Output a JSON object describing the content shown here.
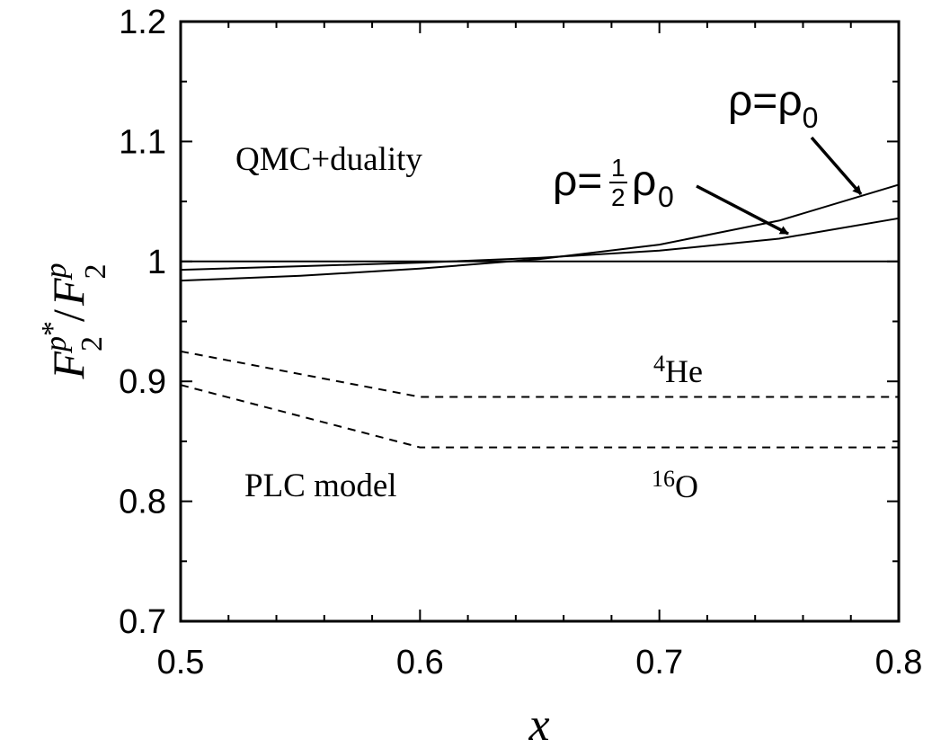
{
  "chart_data": {
    "type": "line",
    "xlabel": "x",
    "ylabel": {
      "base1": "F",
      "sup1": "p",
      "star": "*",
      "sub1": "2",
      "slash": "/",
      "base2": "F",
      "sup2": "p",
      "sub2": "2"
    },
    "xlim": [
      0.5,
      0.8
    ],
    "ylim": [
      0.7,
      1.2
    ],
    "xticks": [
      0.5,
      0.6,
      0.7,
      0.8
    ],
    "xtick_labels": [
      "0.5",
      "0.6",
      "0.7",
      "0.8"
    ],
    "yticks": [
      0.7,
      0.8,
      0.9,
      1.0,
      1.1,
      1.2
    ],
    "ytick_labels": [
      "0.7",
      "0.8",
      "0.9",
      "1",
      "1.1",
      "1.2"
    ],
    "grid": false,
    "series": [
      {
        "style": "solid",
        "x": [
          0.5,
          0.8
        ],
        "y": [
          1.0,
          1.0
        ]
      },
      {
        "style": "solid",
        "x": [
          0.5,
          0.55,
          0.6,
          0.65,
          0.7,
          0.75,
          0.8
        ],
        "y": [
          0.993,
          0.996,
          0.999,
          1.003,
          1.009,
          1.019,
          1.036
        ]
      },
      {
        "style": "solid",
        "x": [
          0.5,
          0.55,
          0.6,
          0.65,
          0.7,
          0.75,
          0.8
        ],
        "y": [
          0.984,
          0.988,
          0.994,
          1.002,
          1.014,
          1.034,
          1.064
        ]
      },
      {
        "style": "dashed",
        "x": [
          0.5,
          0.6,
          0.8
        ],
        "y": [
          0.925,
          0.887,
          0.887
        ]
      },
      {
        "style": "dashed",
        "x": [
          0.5,
          0.6,
          0.8
        ],
        "y": [
          0.897,
          0.845,
          0.845
        ]
      }
    ],
    "annotations": {
      "qmc": "QMC+duality",
      "plc": "PLC model",
      "rho_full": {
        "lhs": "ρ=ρ",
        "sub": "0"
      },
      "rho_half": {
        "lhs": "ρ=",
        "num": "1",
        "den": "2",
        "rho": "ρ",
        "sub": "0"
      },
      "he": {
        "sup": "4",
        "base": "He"
      },
      "o": {
        "sup": "16",
        "base": "O"
      }
    }
  }
}
